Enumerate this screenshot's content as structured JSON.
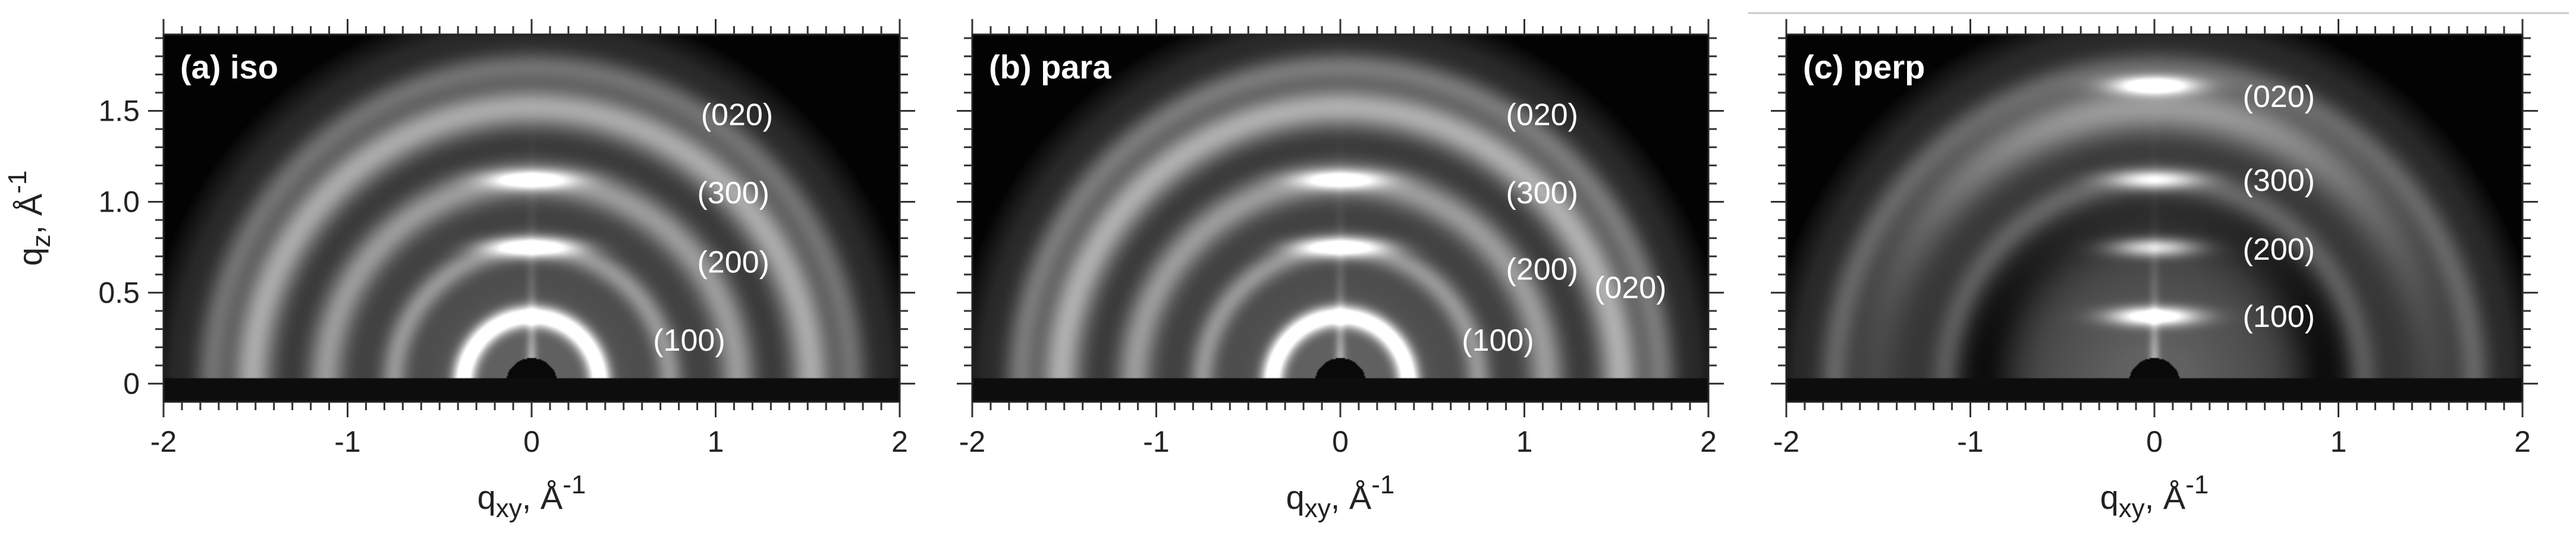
{
  "chart_data": [
    {
      "type": "heatmap",
      "panel_label": "(a) iso",
      "xlabel": {
        "main": "q",
        "sub": "xy",
        "unit": ", Å",
        "sup": "-1"
      },
      "ylabel": {
        "main": "q",
        "sub": "z",
        "unit": ", Å",
        "sup": "-1"
      },
      "xlim": [
        -2,
        2
      ],
      "ylim": [
        -0.1,
        1.92
      ],
      "xticks": [
        -2,
        -1,
        0,
        1,
        2
      ],
      "xtick_labels": [
        "-2",
        "-1",
        "0",
        "1",
        "2"
      ],
      "yticks": [
        0,
        0.5,
        1.0,
        1.5
      ],
      "ytick_labels": [
        "0",
        "0.5",
        "1.0",
        "1.5"
      ],
      "rings": [
        {
          "q": 0.37,
          "intensity": 1.0,
          "width": 0.04,
          "bias": 0.0
        },
        {
          "q": 0.75,
          "intensity": 0.32,
          "width": 0.05,
          "bias": 0.0
        },
        {
          "q": 1.12,
          "intensity": 0.38,
          "width": 0.07,
          "bias": 0.0
        },
        {
          "q": 1.52,
          "intensity": 0.48,
          "width": 0.08,
          "bias": 0.0
        },
        {
          "q": 1.74,
          "intensity": 0.25,
          "width": 0.06,
          "bias": 0.0
        }
      ],
      "spots": [
        {
          "qz": 1.12,
          "intensity": 0.8
        },
        {
          "qz": 0.75,
          "intensity": 0.85
        }
      ],
      "annotations": [
        {
          "text": "(020)",
          "x": 0.92,
          "y": 1.48
        },
        {
          "text": "(300)",
          "x": 0.9,
          "y": 1.05
        },
        {
          "text": "(200)",
          "x": 0.9,
          "y": 0.67
        },
        {
          "text": "(100)",
          "x": 0.66,
          "y": 0.24
        }
      ]
    },
    {
      "type": "heatmap",
      "panel_label": "(b) para",
      "xlabel": {
        "main": "q",
        "sub": "xy",
        "unit": ", Å",
        "sup": "-1"
      },
      "xlim": [
        -2,
        2
      ],
      "ylim": [
        -0.1,
        1.92
      ],
      "xticks": [
        -2,
        -1,
        0,
        1,
        2
      ],
      "xtick_labels": [
        "-2",
        "-1",
        "0",
        "1",
        "2"
      ],
      "rings": [
        {
          "q": 0.37,
          "intensity": 1.0,
          "width": 0.04,
          "bias": 0.0
        },
        {
          "q": 0.75,
          "intensity": 0.32,
          "width": 0.05,
          "bias": 0.0
        },
        {
          "q": 1.12,
          "intensity": 0.38,
          "width": 0.07,
          "bias": 0.0
        },
        {
          "q": 1.52,
          "intensity": 0.5,
          "width": 0.08,
          "bias": 0.0
        },
        {
          "q": 1.74,
          "intensity": 0.28,
          "width": 0.06,
          "bias": 0.0
        }
      ],
      "spots": [
        {
          "qz": 1.12,
          "intensity": 0.75
        },
        {
          "qz": 0.75,
          "intensity": 0.8
        }
      ],
      "annotations": [
        {
          "text": "(020)",
          "x": 0.9,
          "y": 1.48
        },
        {
          "text": "(300)",
          "x": 0.9,
          "y": 1.05
        },
        {
          "text": "(200)",
          "x": 0.9,
          "y": 0.63
        },
        {
          "text": "(100)",
          "x": 0.66,
          "y": 0.24
        },
        {
          "text": "(020)",
          "x": 1.38,
          "y": 0.53
        }
      ]
    },
    {
      "type": "heatmap",
      "panel_label": "(c) perp",
      "xlabel": {
        "main": "q",
        "sub": "xy",
        "unit": ", Å",
        "sup": "-1"
      },
      "xlim": [
        -2,
        2
      ],
      "ylim": [
        -0.1,
        1.92
      ],
      "xticks": [
        -2,
        -1,
        0,
        1,
        2
      ],
      "xtick_labels": [
        "-2",
        "-1",
        "0",
        "1",
        "2"
      ],
      "rings": [
        {
          "q": 1.12,
          "intensity": 0.22,
          "width": 0.06,
          "bias": 0.0
        },
        {
          "q": 1.52,
          "intensity": 0.42,
          "width": 0.1,
          "bias": 0.8
        },
        {
          "q": 1.74,
          "intensity": 0.2,
          "width": 0.06,
          "bias": 0.0
        }
      ],
      "spots": [
        {
          "qz": 1.64,
          "intensity": 1.0
        },
        {
          "qz": 1.12,
          "intensity": 0.75
        },
        {
          "qz": 0.75,
          "intensity": 0.75
        },
        {
          "qz": 0.37,
          "intensity": 1.0
        }
      ],
      "annotations": [
        {
          "text": "(020)",
          "x": 0.48,
          "y": 1.58
        },
        {
          "text": "(300)",
          "x": 0.48,
          "y": 1.12
        },
        {
          "text": "(200)",
          "x": 0.48,
          "y": 0.74
        },
        {
          "text": "(100)",
          "x": 0.48,
          "y": 0.37
        }
      ]
    }
  ]
}
